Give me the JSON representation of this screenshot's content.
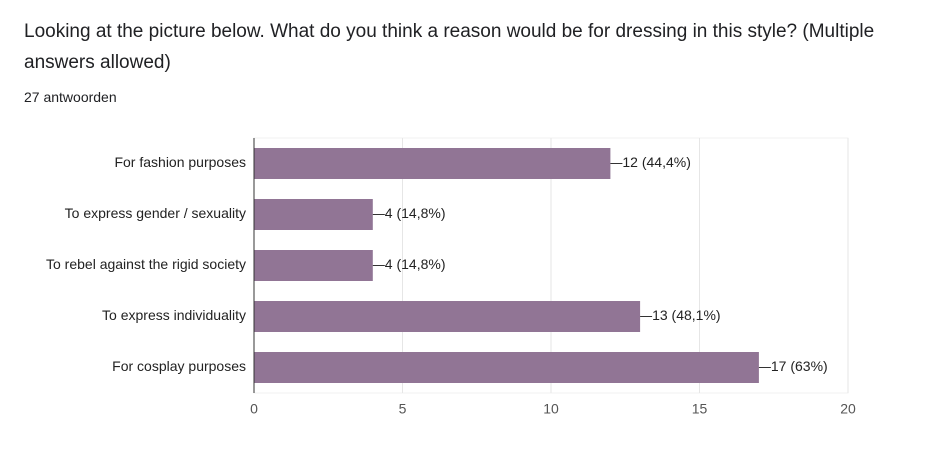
{
  "chart_data": {
    "type": "bar",
    "orientation": "horizontal",
    "title": "Looking at the picture below. What do you think a reason would be for dressing in this style? (Multiple answers allowed)",
    "subtitle": "27 antwoorden",
    "categories": [
      "For fashion purposes",
      "To express gender / sexuality",
      "To rebel against the rigid society",
      "To express individuality",
      "For cosplay purposes"
    ],
    "values": [
      12,
      4,
      4,
      13,
      17
    ],
    "value_labels": [
      "12 (44,4%)",
      "4 (14,8%)",
      "4 (14,8%)",
      "13 (48,1%)",
      "17 (63%)"
    ],
    "color": "#917595",
    "xlim": [
      0,
      20
    ],
    "xticks": [
      0,
      5,
      10,
      15,
      20
    ],
    "grid": true
  }
}
